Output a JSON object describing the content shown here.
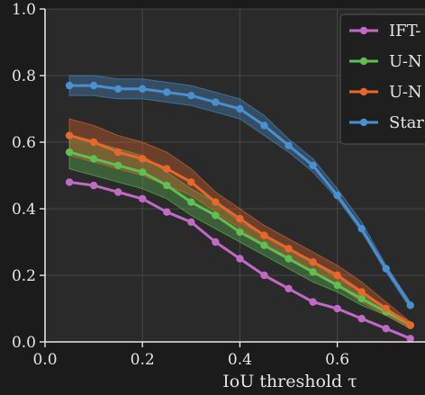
{
  "chart_data": {
    "type": "line",
    "xlabel": "IoU threshold τ",
    "ylabel": "",
    "xlim": [
      0.0,
      0.78
    ],
    "ylim": [
      0.0,
      1.0
    ],
    "x_ticks": [
      0.0,
      0.2,
      0.4,
      0.6
    ],
    "y_ticks": [
      0.0,
      0.2,
      0.4,
      0.6,
      0.8,
      1.0
    ],
    "x_tick_labels": [
      "0.0",
      "0.2",
      "0.4",
      "0.6"
    ],
    "y_tick_labels": [
      "0.0",
      "0.2",
      "0.4",
      "0.6",
      "0.8",
      "1.0"
    ],
    "grid": true,
    "legend_position": "top-right",
    "x": [
      0.05,
      0.1,
      0.15,
      0.2,
      0.25,
      0.3,
      0.35,
      0.4,
      0.45,
      0.5,
      0.55,
      0.6,
      0.65,
      0.7,
      0.75
    ],
    "series": [
      {
        "name": "IFT-",
        "color": "#c069c6",
        "values": [
          0.48,
          0.47,
          0.45,
          0.43,
          0.39,
          0.36,
          0.3,
          0.25,
          0.2,
          0.16,
          0.12,
          0.1,
          0.07,
          0.04,
          0.01
        ],
        "band_lower": [],
        "band_upper": []
      },
      {
        "name": "U-N",
        "color": "#5fbf52",
        "values": [
          0.57,
          0.55,
          0.53,
          0.51,
          0.47,
          0.42,
          0.38,
          0.33,
          0.29,
          0.25,
          0.21,
          0.17,
          0.13,
          0.09,
          0.05
        ],
        "band_lower": [
          0.52,
          0.5,
          0.48,
          0.46,
          0.43,
          0.38,
          0.34,
          0.3,
          0.26,
          0.22,
          0.18,
          0.15,
          0.11,
          0.08,
          0.04
        ],
        "band_upper": [
          0.62,
          0.6,
          0.58,
          0.56,
          0.51,
          0.46,
          0.42,
          0.36,
          0.32,
          0.28,
          0.24,
          0.19,
          0.15,
          0.1,
          0.06
        ]
      },
      {
        "name": "U-N",
        "color": "#e8682c",
        "values": [
          0.62,
          0.6,
          0.57,
          0.55,
          0.52,
          0.48,
          0.42,
          0.37,
          0.32,
          0.28,
          0.24,
          0.2,
          0.15,
          0.1,
          0.05
        ],
        "band_lower": [
          0.56,
          0.54,
          0.52,
          0.5,
          0.47,
          0.44,
          0.39,
          0.34,
          0.29,
          0.25,
          0.21,
          0.17,
          0.12,
          0.08,
          0.04
        ],
        "band_upper": [
          0.67,
          0.65,
          0.62,
          0.6,
          0.57,
          0.52,
          0.45,
          0.4,
          0.35,
          0.31,
          0.27,
          0.23,
          0.18,
          0.12,
          0.06
        ]
      },
      {
        "name": "Star",
        "color": "#4a8fcf",
        "values": [
          0.77,
          0.77,
          0.76,
          0.76,
          0.75,
          0.74,
          0.72,
          0.7,
          0.65,
          0.59,
          0.53,
          0.44,
          0.34,
          0.22,
          0.11
        ],
        "band_lower": [
          0.74,
          0.74,
          0.73,
          0.73,
          0.72,
          0.71,
          0.69,
          0.67,
          0.62,
          0.57,
          0.51,
          0.43,
          0.33,
          0.21,
          0.1
        ],
        "band_upper": [
          0.8,
          0.8,
          0.79,
          0.79,
          0.78,
          0.77,
          0.75,
          0.73,
          0.68,
          0.61,
          0.55,
          0.46,
          0.36,
          0.23,
          0.12
        ]
      }
    ]
  },
  "colors": {
    "background": "#1b1b1b",
    "plot_background": "#2a2a2a",
    "grid": "#464646",
    "axis": "#e6e6e6",
    "legend_background": "#1f1f1f"
  }
}
